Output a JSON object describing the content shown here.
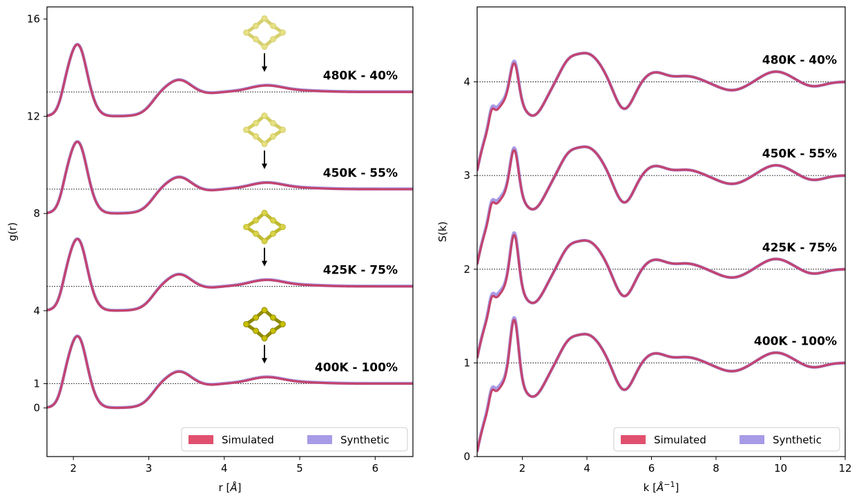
{
  "colors": {
    "simulated": "#e0506e",
    "synthetic": "#a89be6",
    "overlap": "#c4436c",
    "molecule": "#e6e085",
    "molecule_dark": "#c9c320"
  },
  "chart_data": [
    {
      "type": "line",
      "ylabel": "g(r)",
      "xlabel_prefix": "r [",
      "xlabel_unit": "Å",
      "xlabel_suffix": "]",
      "xlim": [
        1.65,
        6.5
      ],
      "ylim": [
        -2.0,
        16.5
      ],
      "xticks": [
        2,
        3,
        4,
        5,
        6
      ],
      "yticks": [
        0,
        1,
        4,
        8,
        12,
        16
      ],
      "grid": false,
      "legend_position": "lower right",
      "legend": [
        "Simulated",
        "Synthetic"
      ],
      "series": [
        {
          "name": "Simulated"
        },
        {
          "name": "Synthetic"
        }
      ],
      "panels": [
        {
          "label": "480K - 40%",
          "baseline": 13,
          "temperature": "480K",
          "fraction": 40,
          "peaks": [
            {
              "r": 2.07,
              "g": 15.1
            },
            {
              "r": 3.42,
              "g": 13.45
            },
            {
              "r": 4.55,
              "g": 13.25
            }
          ],
          "min": {
            "r": 2.6,
            "g": 12.0
          },
          "start": {
            "r": 1.65,
            "g": 12.0
          }
        },
        {
          "label": "450K - 55%",
          "baseline": 9,
          "temperature": "450K",
          "fraction": 55,
          "peaks": [
            {
              "r": 2.07,
              "g": 11.1
            },
            {
              "r": 3.42,
              "g": 9.45
            },
            {
              "r": 4.55,
              "g": 9.25
            }
          ],
          "min": {
            "r": 2.6,
            "g": 8.0
          },
          "start": {
            "r": 1.65,
            "g": 8.0
          }
        },
        {
          "label": "425K - 75%",
          "baseline": 5,
          "temperature": "425K",
          "fraction": 75,
          "peaks": [
            {
              "r": 2.07,
              "g": 7.1
            },
            {
              "r": 3.42,
              "g": 5.45
            },
            {
              "r": 4.55,
              "g": 5.25
            }
          ],
          "min": {
            "r": 2.6,
            "g": 4.0
          },
          "start": {
            "r": 1.65,
            "g": 4.0
          }
        },
        {
          "label": "400K - 100%",
          "baseline": 1,
          "temperature": "400K",
          "fraction": 100,
          "peaks": [
            {
              "r": 2.07,
              "g": 3.1
            },
            {
              "r": 3.42,
              "g": 1.45
            },
            {
              "r": 4.55,
              "g": 1.25
            }
          ],
          "min": {
            "r": 2.6,
            "g": 0.0
          },
          "start": {
            "r": 1.65,
            "g": 0.0
          }
        }
      ]
    },
    {
      "type": "line",
      "ylabel": "S(k)",
      "xlabel_prefix": "k [",
      "xlabel_unit": "Å",
      "xlabel_exp": "−1",
      "xlabel_suffix": "]",
      "xlim": [
        0.6,
        12.0
      ],
      "ylim": [
        0.0,
        4.8
      ],
      "xticks": [
        2,
        4,
        6,
        8,
        10,
        12
      ],
      "yticks": [
        0,
        1,
        2,
        3,
        4
      ],
      "grid": false,
      "legend_position": "lower right",
      "legend": [
        "Simulated",
        "Synthetic"
      ],
      "series": [
        {
          "name": "Simulated"
        },
        {
          "name": "Synthetic"
        }
      ],
      "panels": [
        {
          "label": "480K - 40%",
          "baseline": 4,
          "first_peak": {
            "k": 1.75,
            "S": 4.37
          },
          "second_peak": {
            "k": 4.0,
            "S": 4.3
          },
          "start": {
            "k": 0.6,
            "S": 3.05
          }
        },
        {
          "label": "450K - 55%",
          "baseline": 3,
          "first_peak": {
            "k": 1.75,
            "S": 3.44
          },
          "second_peak": {
            "k": 4.0,
            "S": 3.3
          },
          "start": {
            "k": 0.6,
            "S": 2.05
          }
        },
        {
          "label": "425K - 75%",
          "baseline": 2,
          "first_peak": {
            "k": 1.75,
            "S": 2.53
          },
          "second_peak": {
            "k": 4.0,
            "S": 2.3
          },
          "start": {
            "k": 0.6,
            "S": 1.05
          }
        },
        {
          "label": "400K - 100%",
          "baseline": 1,
          "first_peak": {
            "k": 1.75,
            "S": 1.62
          },
          "second_peak": {
            "k": 4.0,
            "S": 1.31
          },
          "start": {
            "k": 0.6,
            "S": 0.05
          }
        }
      ]
    }
  ]
}
